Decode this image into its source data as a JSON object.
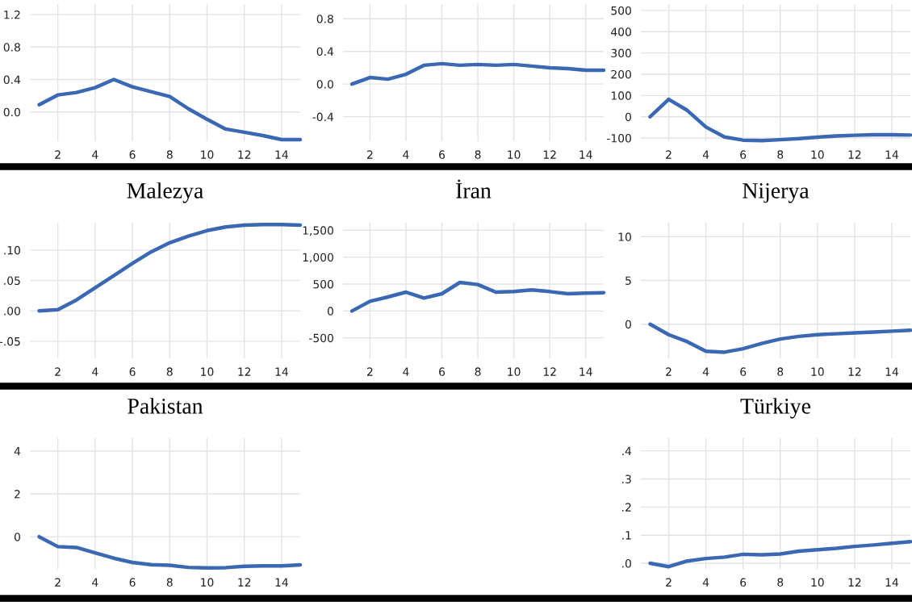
{
  "chart_data": [
    {
      "type": "line",
      "x": [
        1,
        2,
        3,
        4,
        5,
        6,
        7,
        8,
        9,
        10,
        11,
        12,
        13,
        14,
        15
      ],
      "series": [
        {
          "color": "#3a68b3",
          "values": [
            0.09,
            0.21,
            0.24,
            0.3,
            0.4,
            0.31,
            0.25,
            0.19,
            0.04,
            -0.09,
            -0.21,
            -0.25,
            -0.29,
            -0.34,
            -0.34
          ]
        }
      ],
      "xlim": [
        0.5,
        15
      ],
      "xticks": [
        2,
        4,
        6,
        8,
        10,
        12,
        14
      ],
      "ylim": [
        -0.36,
        1.33
      ],
      "yticks": [
        {
          "value": 0,
          "label": "0.0"
        },
        0.4,
        0.8,
        1.2
      ],
      "grid": true,
      "line_style": "solid",
      "marker": "none"
    },
    {
      "type": "line",
      "x": [
        1,
        2,
        3,
        4,
        5,
        6,
        7,
        8,
        9,
        10,
        11,
        12,
        13,
        14,
        15
      ],
      "series": [
        {
          "color": "#3a68b3",
          "values": [
            0.0,
            0.08,
            0.06,
            0.12,
            0.23,
            0.25,
            0.23,
            0.24,
            0.23,
            0.24,
            0.22,
            0.2,
            0.19,
            0.17,
            0.17
          ]
        }
      ],
      "xlim": [
        0.5,
        15
      ],
      "xticks": [
        2,
        4,
        6,
        8,
        10,
        12,
        14
      ],
      "ylim": [
        -0.7,
        0.98
      ],
      "yticks": [
        -0.4,
        {
          "value": 0,
          "label": "0.0"
        },
        0.4,
        0.8
      ],
      "grid": true,
      "line_style": "solid",
      "marker": "none"
    },
    {
      "type": "line",
      "x": [
        1,
        2,
        3,
        4,
        5,
        6,
        7,
        8,
        9,
        10,
        11,
        12,
        13,
        14,
        15
      ],
      "series": [
        {
          "color": "#3a68b3",
          "values": [
            0,
            82,
            30,
            -48,
            -95,
            -110,
            -112,
            -108,
            -103,
            -96,
            -90,
            -87,
            -85,
            -85,
            -86
          ]
        }
      ],
      "xlim": [
        0.5,
        15
      ],
      "xticks": [
        2,
        4,
        6,
        8,
        10,
        12,
        14
      ],
      "ylim": [
        -115,
        530
      ],
      "yticks": [
        -100,
        0,
        100,
        200,
        300,
        400,
        500
      ],
      "grid": true,
      "line_style": "solid",
      "marker": "none"
    },
    {
      "type": "line",
      "title": "Malezya",
      "x": [
        1,
        2,
        3,
        4,
        5,
        6,
        7,
        8,
        9,
        10,
        11,
        12,
        13,
        14,
        15
      ],
      "series": [
        {
          "color": "#3a68b3",
          "values": [
            0.0,
            0.002,
            0.018,
            0.038,
            0.058,
            0.078,
            0.097,
            0.112,
            0.123,
            0.132,
            0.138,
            0.141,
            0.142,
            0.142,
            0.141
          ]
        }
      ],
      "xlim": [
        0.5,
        15
      ],
      "xticks": [
        2,
        4,
        6,
        8,
        10,
        12,
        14
      ],
      "ylim": [
        -0.078,
        0.145
      ],
      "yticks": [
        {
          "value": -0.05,
          "label": "-.05"
        },
        {
          "value": 0,
          "label": ".00"
        },
        {
          "value": 0.05,
          "label": ".05"
        },
        {
          "value": 0.1,
          "label": ".10"
        }
      ],
      "grid": true,
      "line_style": "solid",
      "marker": "none"
    },
    {
      "type": "line",
      "title": "İran",
      "x": [
        1,
        2,
        3,
        4,
        5,
        6,
        7,
        8,
        9,
        10,
        11,
        12,
        13,
        14,
        15
      ],
      "series": [
        {
          "color": "#3a68b3",
          "values": [
            0,
            180,
            260,
            350,
            240,
            320,
            530,
            490,
            350,
            360,
            390,
            360,
            320,
            330,
            340
          ]
        }
      ],
      "xlim": [
        0.5,
        15
      ],
      "xticks": [
        2,
        4,
        6,
        8,
        10,
        12,
        14
      ],
      "ylim": [
        -880,
        1640
      ],
      "yticks": [
        {
          "value": -500,
          "label": "-500"
        },
        {
          "value": 0,
          "label": "0"
        },
        {
          "value": 500,
          "label": "500"
        },
        {
          "value": 1000,
          "label": "1,000"
        },
        {
          "value": 1500,
          "label": "1,500"
        }
      ],
      "grid": true,
      "line_style": "solid",
      "marker": "none"
    },
    {
      "type": "line",
      "title": "Nijerya",
      "x": [
        1,
        2,
        3,
        4,
        5,
        6,
        7,
        8,
        9,
        10,
        11,
        12,
        13,
        14,
        15
      ],
      "series": [
        {
          "color": "#3a68b3",
          "values": [
            0,
            -1.2,
            -2.0,
            -3.1,
            -3.2,
            -2.8,
            -2.2,
            -1.7,
            -1.4,
            -1.2,
            -1.1,
            -1.0,
            -0.9,
            -0.8,
            -0.7
          ]
        }
      ],
      "xlim": [
        0.5,
        15
      ],
      "xticks": [
        2,
        4,
        6,
        8,
        10,
        12,
        14
      ],
      "ylim": [
        -3.9,
        11.6
      ],
      "yticks": [
        0,
        5,
        10
      ],
      "grid": true,
      "line_style": "solid",
      "marker": "none"
    },
    {
      "type": "line",
      "title": "Pakistan",
      "x": [
        1,
        2,
        3,
        4,
        5,
        6,
        7,
        8,
        9,
        10,
        11,
        12,
        13,
        14,
        15
      ],
      "series": [
        {
          "color": "#3a68b3",
          "values": [
            0,
            -0.46,
            -0.5,
            -0.75,
            -1.0,
            -1.2,
            -1.3,
            -1.33,
            -1.43,
            -1.45,
            -1.44,
            -1.38,
            -1.36,
            -1.36,
            -1.31
          ]
        }
      ],
      "xlim": [
        0.5,
        15
      ],
      "xticks": [
        2,
        4,
        6,
        8,
        10,
        12,
        14
      ],
      "ylim": [
        -1.5,
        4.6
      ],
      "yticks": [
        0,
        2,
        4
      ],
      "grid": true,
      "line_style": "solid",
      "marker": "none"
    },
    {
      "type": "line",
      "title": "Türkiye",
      "x": [
        1,
        2,
        3,
        4,
        5,
        6,
        7,
        8,
        9,
        10,
        11,
        12,
        13,
        14,
        15
      ],
      "series": [
        {
          "color": "#3a68b3",
          "values": [
            0.0,
            -0.012,
            0.008,
            0.017,
            0.022,
            0.032,
            0.03,
            0.033,
            0.043,
            0.048,
            0.053,
            0.06,
            0.065,
            0.071,
            0.077
          ]
        }
      ],
      "xlim": [
        0.5,
        15
      ],
      "xticks": [
        2,
        4,
        6,
        8,
        10,
        12,
        14
      ],
      "ylim": [
        -0.02,
        0.445
      ],
      "yticks": [
        {
          "value": 0,
          "label": ".0"
        },
        {
          "value": 0.1,
          "label": ".1"
        },
        {
          "value": 0.2,
          "label": ".2"
        },
        {
          "value": 0.3,
          "label": ".3"
        },
        {
          "value": 0.4,
          "label": ".4"
        }
      ],
      "grid": true,
      "line_style": "solid",
      "marker": "none"
    }
  ]
}
